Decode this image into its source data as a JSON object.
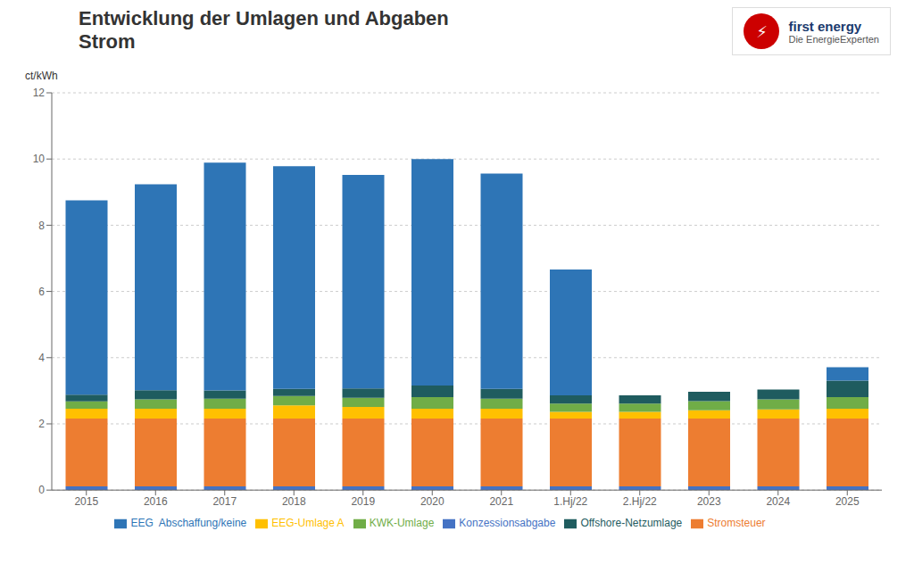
{
  "chart_data": {
    "type": "bar",
    "stacked": true,
    "title": "Entwicklung der Umlagen und Abgaben",
    "subtitle": "Strom",
    "y_label": "ct/kWh",
    "annotations": [
      "first energy",
      "Die EnergieExperten",
      "⚡"
    ],
    "categories": [
      "2015",
      "2016",
      "2017",
      "2018",
      "2019",
      "2020",
      "2021",
      "1.Hj/22",
      "2.Hj/22",
      "2023",
      "2024",
      "2025"
    ],
    "series": [
      {
        "name": "Konzessionsabgabe",
        "color": "#4472c4",
        "values": [
          0.11,
          0.11,
          0.11,
          0.11,
          0.11,
          0.11,
          0.11,
          0.11,
          0.11,
          0.11,
          0.11,
          0.11
        ]
      },
      {
        "name": "Stromsteuer",
        "color": "#ed7d31",
        "values": [
          2.05,
          2.05,
          2.05,
          2.05,
          2.05,
          2.05,
          2.05,
          2.05,
          2.05,
          2.05,
          2.05,
          2.05
        ]
      },
      {
        "name": "EEG-Umlage A",
        "color": "#ffc000",
        "values": [
          0.3,
          0.3,
          0.3,
          0.4,
          0.35,
          0.3,
          0.3,
          0.2,
          0.2,
          0.25,
          0.28,
          0.3
        ]
      },
      {
        "name": "KWK-Umlage",
        "color": "#70ad47",
        "values": [
          0.22,
          0.28,
          0.3,
          0.28,
          0.28,
          0.35,
          0.3,
          0.25,
          0.25,
          0.28,
          0.3,
          0.35
        ]
      },
      {
        "name": "Offshore-Netzumlage",
        "color": "#1f5c5f",
        "values": [
          0.2,
          0.28,
          0.25,
          0.22,
          0.28,
          0.35,
          0.3,
          0.25,
          0.25,
          0.28,
          0.3,
          0.5
        ]
      },
      {
        "name": "EEG  Abschaffung/keine",
        "color": "#2e75b6",
        "values": [
          5.87,
          6.22,
          6.88,
          6.72,
          6.45,
          6.84,
          6.5,
          3.8,
          0.0,
          0.0,
          0.0,
          0.4
        ]
      }
    ],
    "ylim": [
      0,
      12
    ],
    "yticks": [
      0,
      2,
      4,
      6,
      8,
      10,
      12
    ],
    "grid": true,
    "legend": "bottom"
  }
}
